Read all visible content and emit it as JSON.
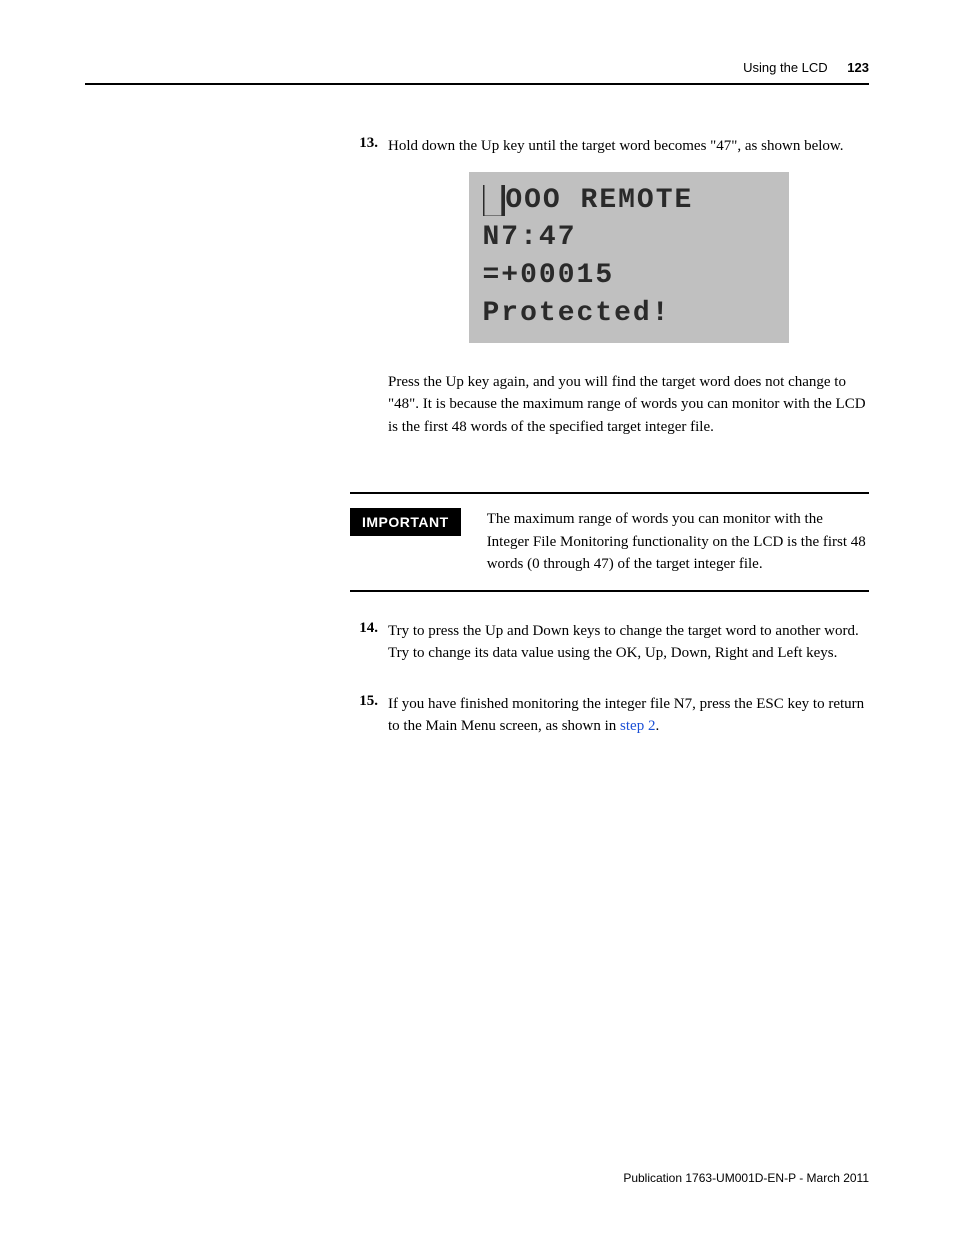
{
  "header": {
    "section": "Using the LCD",
    "page": "123"
  },
  "step13": {
    "num": "13.",
    "text": "Hold down the Up key until the target word becomes \"47\", as shown below.",
    "after": "Press the Up key again, and you will find the target word does not change to \"48\". It is because the maximum range of words you can monitor with the LCD is the first 48 words of the specified target integer file."
  },
  "lcd": {
    "bg_color": "#c0c0c0",
    "fg_color": "#2a2a2a",
    "r1_inv": "█",
    "r1_plain": "OOO REMOTE",
    "r2": "N7:47",
    "r3": "=+00015",
    "r4": "Protected!"
  },
  "important": {
    "label": "IMPORTANT",
    "text": "The maximum range of words you can monitor with the Integer File Monitoring functionality on the LCD is the first 48 words (0 through 47) of the target integer file."
  },
  "step14": {
    "num": "14.",
    "text": "Try to press the Up and Down keys to change the target word to another word. Try to change its data value using the OK, Up, Down, Right and Left keys."
  },
  "step15": {
    "num": "15.",
    "text_a": "If you have finished monitoring the integer file N7, press the ESC key to return to the Main Menu screen, as shown in ",
    "link": "step 2",
    "text_b": "."
  },
  "footer": {
    "text": "Publication 1763-UM001D-EN-P - March 2011"
  }
}
